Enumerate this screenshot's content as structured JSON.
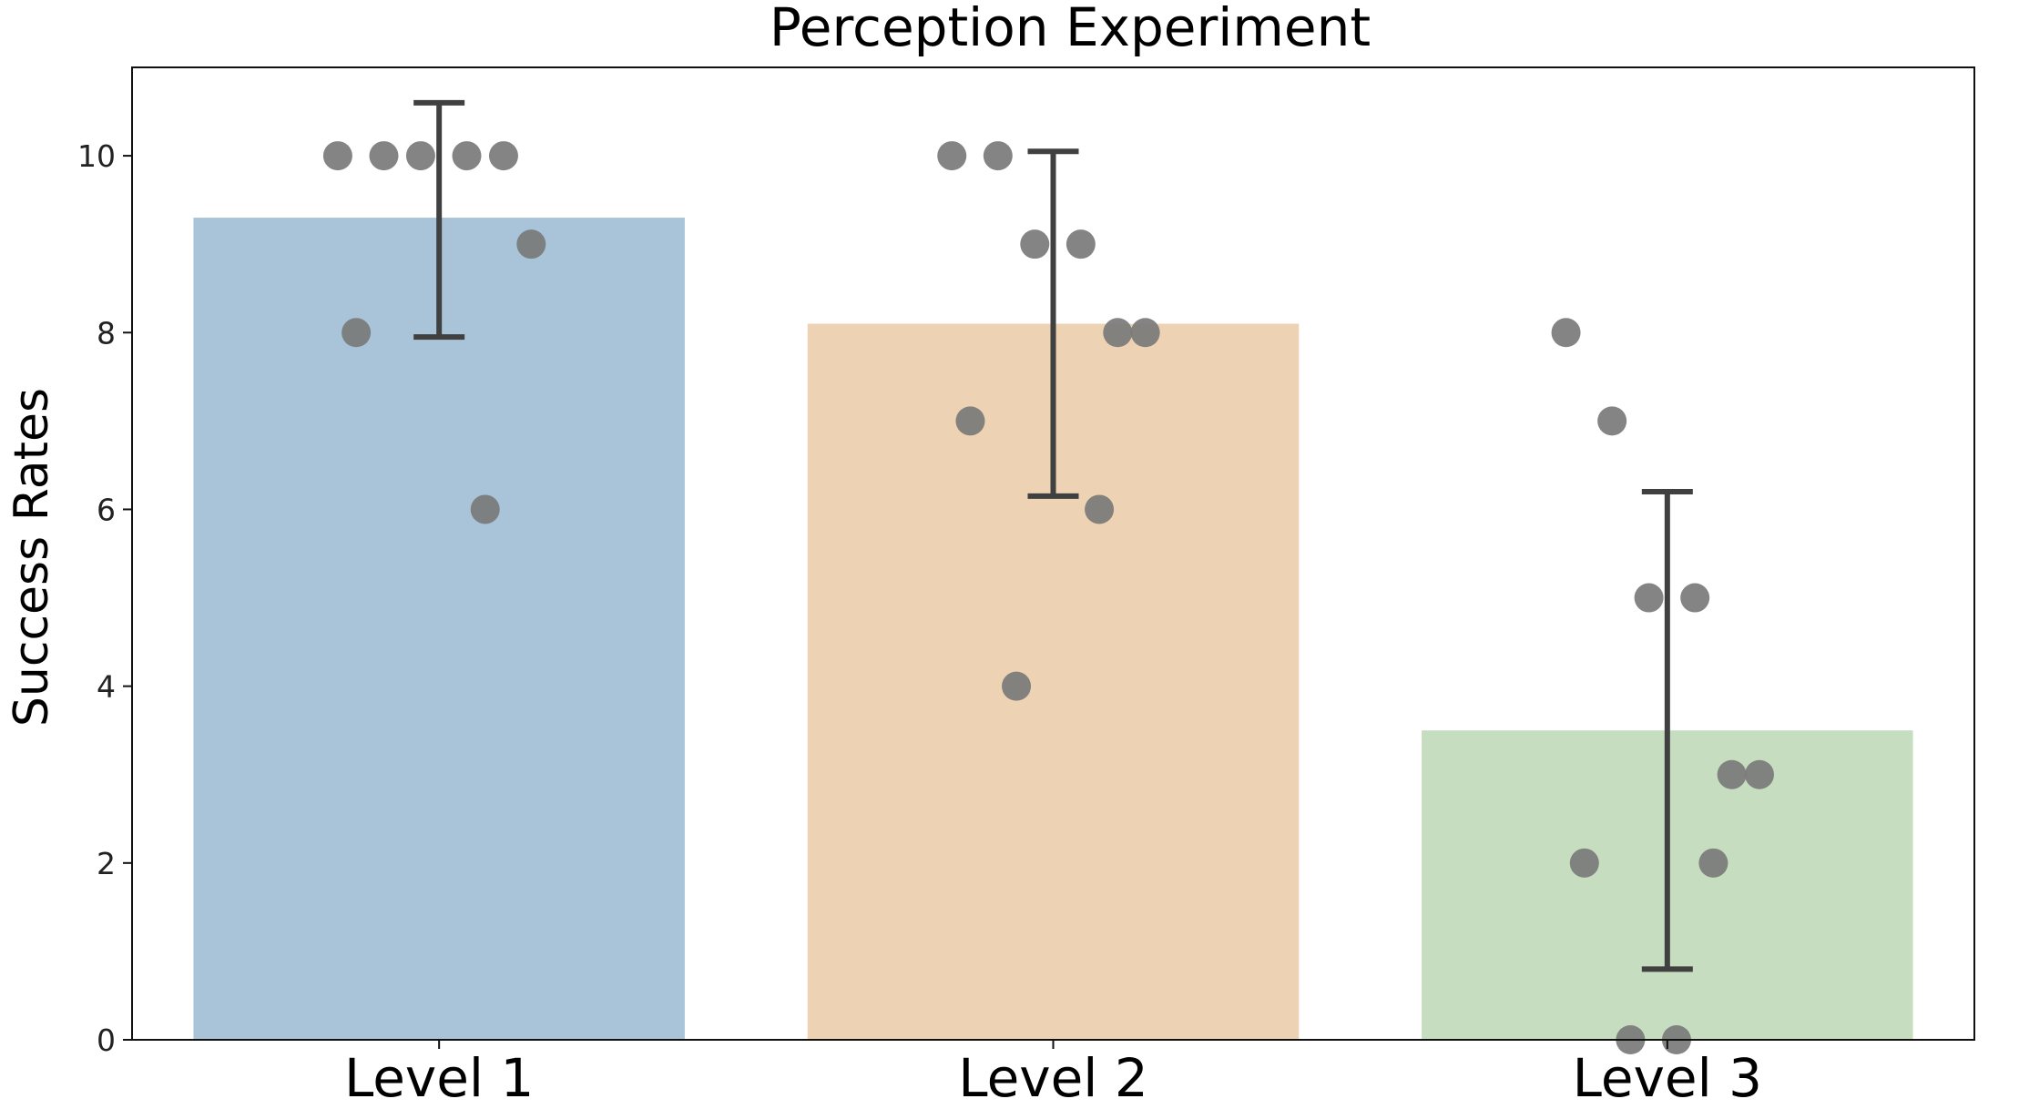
{
  "chart_data": {
    "type": "bar",
    "title": "Perception Experiment",
    "xlabel": "",
    "ylabel": "Success Rates",
    "ylim": [
      0,
      11
    ],
    "yticks": [
      0,
      2,
      4,
      6,
      8,
      10
    ],
    "grid": false,
    "categories": [
      "Level 1",
      "Level 2",
      "Level 3"
    ],
    "values": [
      9.3,
      8.1,
      3.5
    ],
    "error_low": [
      7.95,
      6.15,
      0.8
    ],
    "error_high": [
      10.6,
      10.05,
      6.2
    ],
    "points": [
      [
        10,
        10,
        10,
        10,
        10,
        9,
        8,
        6
      ],
      [
        10,
        10,
        9,
        9,
        8,
        8,
        7,
        6,
        4
      ],
      [
        8,
        7,
        5,
        5,
        3,
        3,
        2,
        2,
        0,
        0
      ]
    ],
    "colors": {
      "bars": [
        "#a9c4d8",
        "#edd2b4",
        "#c6ddc0"
      ],
      "points": "#7a7a7a",
      "errorbar": "#404040"
    }
  }
}
